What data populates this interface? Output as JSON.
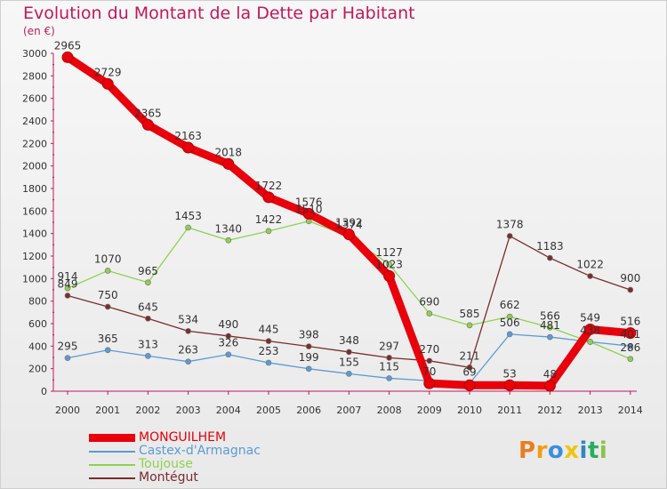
{
  "chart_data": {
    "type": "line",
    "title": "Evolution du Montant de la Dette par Habitant",
    "unit_label": "(en €)",
    "x": [
      "2000",
      "2001",
      "2002",
      "2003",
      "2004",
      "2005",
      "2006",
      "2007",
      "2008",
      "2009",
      "2010",
      "2011",
      "2012",
      "2013",
      "2014"
    ],
    "ylim": [
      0,
      3000
    ],
    "yticks": [
      0,
      200,
      400,
      600,
      800,
      1000,
      1200,
      1400,
      1600,
      1800,
      2000,
      2200,
      2400,
      2600,
      2800,
      3000
    ],
    "grid": false,
    "legend_placement": "bottom-left",
    "series": [
      {
        "name": "MONGUILHEM",
        "color": "#e8000b",
        "values": [
          2965,
          2729,
          2365,
          2163,
          2018,
          1722,
          1576,
          1392,
          1023,
          70,
          53,
          53,
          48,
          549,
          516
        ],
        "labels": [
          "2965",
          "2729",
          "2365",
          "2163",
          "2018",
          "1722",
          "1576",
          "1392",
          "1023",
          "70",
          "",
          "53",
          "48",
          "549",
          "516"
        ]
      },
      {
        "name": "Castex-d'Armagnac",
        "color": "#5b9bd5",
        "values": [
          295,
          365,
          313,
          263,
          326,
          253,
          199,
          155,
          115,
          93,
          69,
          506,
          481,
          438,
          401
        ],
        "labels": [
          "295",
          "365",
          "313",
          "263",
          "326",
          "253",
          "199",
          "155",
          "115",
          "",
          "69",
          "506",
          "481",
          "438",
          "401"
        ]
      },
      {
        "name": "Toujouse",
        "color": "#8fd14f",
        "values": [
          914,
          1070,
          965,
          1453,
          1340,
          1422,
          1510,
          1374,
          1127,
          690,
          585,
          662,
          566,
          438,
          286
        ],
        "labels": [
          "914",
          "1070",
          "965",
          "1453",
          "1340",
          "1422",
          "1510",
          "1374",
          "1127",
          "690",
          "585",
          "662",
          "566",
          "",
          "286"
        ]
      },
      {
        "name": "Montégut",
        "color": "#7b2c2c",
        "values": [
          849,
          750,
          645,
          534,
          490,
          445,
          398,
          348,
          297,
          270,
          211,
          1378,
          1183,
          1022,
          900
        ],
        "labels": [
          "849",
          "750",
          "645",
          "534",
          "490",
          "445",
          "398",
          "348",
          "297",
          "270",
          "211",
          "1378",
          "1183",
          "1022",
          "900"
        ]
      }
    ]
  },
  "legend": {
    "items": [
      {
        "name": "MONGUILHEM",
        "color": "#e8000b"
      },
      {
        "name": "Castex-d'Armagnac",
        "color": "#5b9bd5"
      },
      {
        "name": "Toujouse",
        "color": "#8fd14f"
      },
      {
        "name": "Montégut",
        "color": "#7b2c2c"
      }
    ]
  },
  "logo": {
    "letters": [
      "P",
      "r",
      "o",
      "x",
      "i",
      "t",
      "i"
    ],
    "colors": [
      "#e67e22",
      "#f39c12",
      "#3b8ede",
      "#f1c40f",
      "#2e86c1",
      "#27ae60",
      "#8bc34a"
    ]
  }
}
